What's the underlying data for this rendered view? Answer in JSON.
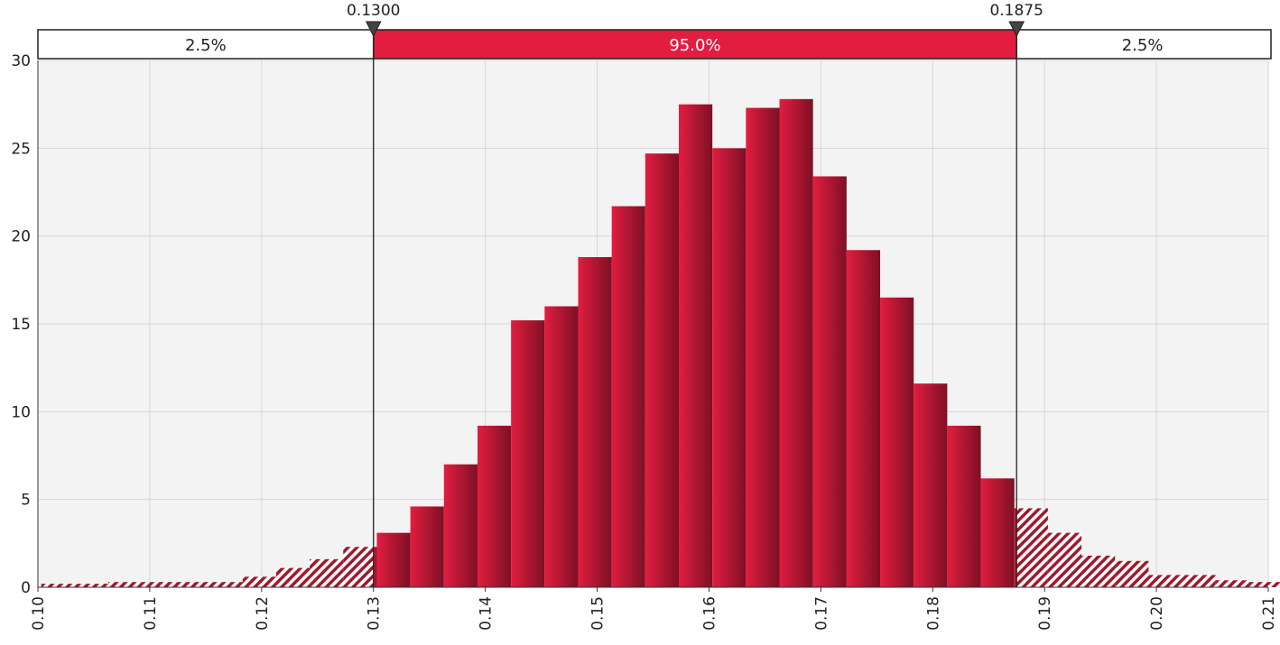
{
  "chart_data": {
    "type": "bar",
    "title": "",
    "xlabel": "",
    "ylabel": "",
    "xlim": [
      0.1,
      0.21
    ],
    "ylim": [
      0,
      30
    ],
    "grid": true,
    "x_ticks": [
      "0.10",
      "0.11",
      "0.12",
      "0.13",
      "0.14",
      "0.15",
      "0.16",
      "0.17",
      "0.18",
      "0.19",
      "0.20",
      "0.21"
    ],
    "y_ticks": [
      "0",
      "5",
      "10",
      "15",
      "20",
      "25",
      "30"
    ],
    "bin_width": 0.003,
    "bin_start": 0.1003,
    "values": [
      0.2,
      0.2,
      0.3,
      0.3,
      0.3,
      0.3,
      0.6,
      1.1,
      1.6,
      2.3,
      3.1,
      4.6,
      7.0,
      9.2,
      15.2,
      16.0,
      18.8,
      21.7,
      24.7,
      27.5,
      25.0,
      27.3,
      27.8,
      23.4,
      19.2,
      16.5,
      11.6,
      9.2,
      6.2,
      4.5,
      3.1,
      1.8,
      1.5,
      0.7,
      0.7,
      0.4,
      0.3
    ],
    "lower_marker": {
      "value": 0.13,
      "label": "0.1300"
    },
    "upper_marker": {
      "value": 0.1875,
      "label": "0.1875"
    },
    "bands": [
      {
        "label": "2.5%",
        "region": "left"
      },
      {
        "label": "95.0%",
        "region": "middle"
      },
      {
        "label": "2.5%",
        "region": "right"
      }
    ],
    "colors": {
      "bar_light": "#e21d40",
      "bar_dark": "#7d1024",
      "hatch": "#9e1a2c",
      "band_fill": "#e21d40",
      "plot_bg": "#f3f3f3",
      "grid": "#d6d6d6"
    }
  }
}
